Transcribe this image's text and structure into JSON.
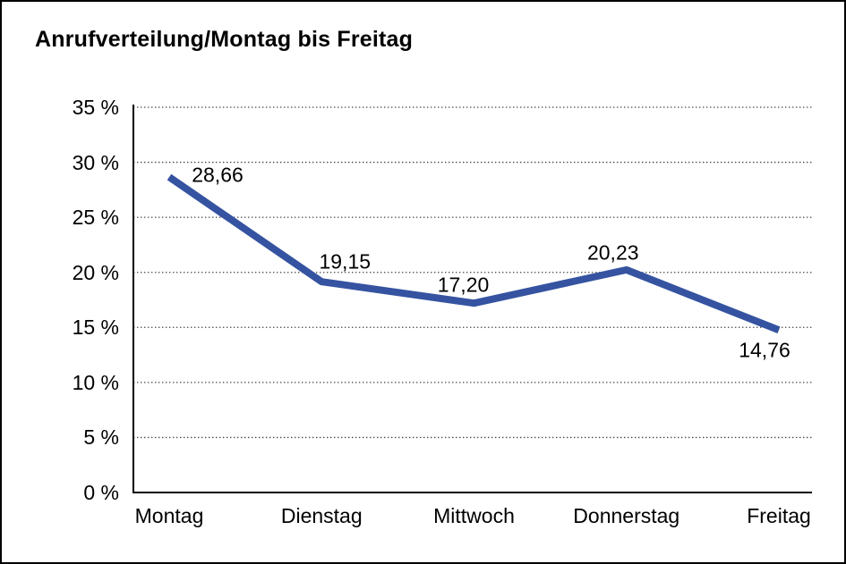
{
  "window": {
    "background_color": "#ffffff",
    "border_color": "#000000"
  },
  "chart_data": {
    "type": "line",
    "title": "Anrufverteilung/Montag bis Freitag",
    "categories": [
      "Montag",
      "Dienstag",
      "Mittwoch",
      "Donnerstag",
      "Freitag"
    ],
    "series": [
      {
        "name": "Anrufverteilung",
        "values": [
          28.66,
          19.15,
          17.2,
          20.23,
          14.76
        ]
      }
    ],
    "data_labels": [
      "28,66",
      "19,15",
      "17,20",
      "20,23",
      "14,76"
    ],
    "y_ticks": [
      {
        "value": 35,
        "label": "35 %"
      },
      {
        "value": 30,
        "label": "30 %"
      },
      {
        "value": 25,
        "label": "25 %"
      },
      {
        "value": 20,
        "label": "20 %"
      },
      {
        "value": 15,
        "label": "15 %"
      },
      {
        "value": 10,
        "label": "10 %"
      },
      {
        "value": 5,
        "label": "5 %"
      },
      {
        "value": 0,
        "label": "0 %"
      }
    ],
    "ylim": [
      0,
      35
    ],
    "xlabel": "",
    "ylabel": "",
    "grid": "horizontal-dotted",
    "legend": "none",
    "line_color": "#3553A0",
    "gridline_color": "#444444",
    "axis_color": "#000000",
    "text_color": "#000000",
    "markers": "none"
  }
}
